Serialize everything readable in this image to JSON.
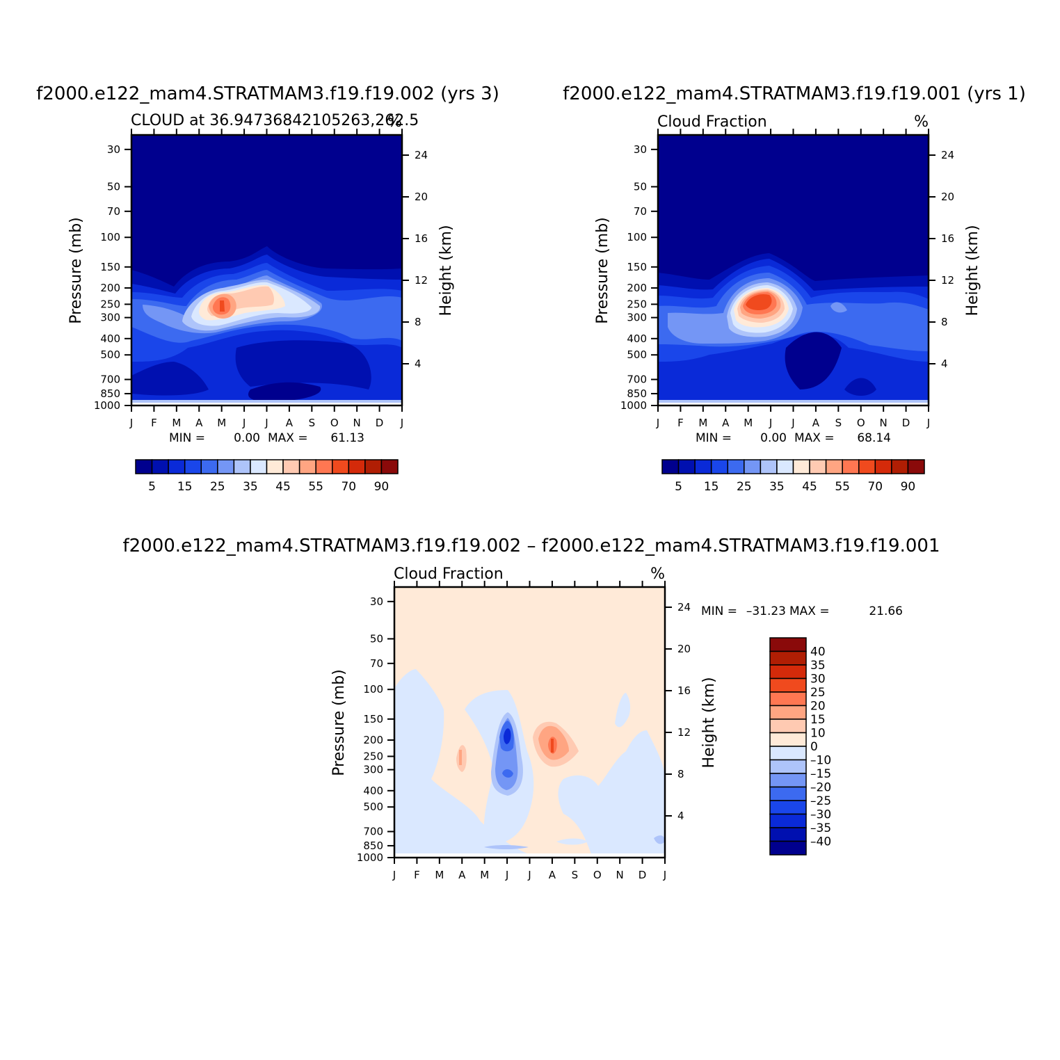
{
  "chart_data": [
    {
      "type": "heatmap",
      "title": "f2000.e122_mam4.STRATMAM3.f19.f19.002 (yrs 3)",
      "left_string": "CLOUD at 36.94736842105263,262.5",
      "right_string": "%",
      "ylabel": "Pressure (mb)",
      "ylabel_right": "Height (km)",
      "x_ticks": [
        "J",
        "F",
        "M",
        "A",
        "M",
        "J",
        "J",
        "A",
        "S",
        "O",
        "N",
        "D",
        "J"
      ],
      "y_ticks": [
        30,
        50,
        70,
        100,
        150,
        200,
        250,
        300,
        400,
        500,
        700,
        850,
        1000
      ],
      "y_log_scale": true,
      "y_right_ticks": [
        24,
        20,
        16,
        12,
        8,
        4
      ],
      "min_label": "MIN =",
      "min_value": "0.00",
      "max_label": "MAX =",
      "max_value": "61.13",
      "colorbar": {
        "orientation": "horizontal",
        "levels": [
          5,
          10,
          15,
          20,
          25,
          30,
          35,
          40,
          45,
          50,
          55,
          60,
          70,
          80,
          90
        ],
        "labels": [
          "5",
          "15",
          "25",
          "35",
          "45",
          "55",
          "70",
          "90"
        ],
        "colors": [
          "#00008e",
          "#0010b0",
          "#0a2ad8",
          "#1a46ea",
          "#3c6af0",
          "#7496f5",
          "#aec4fa",
          "#dae8ff",
          "#ffead8",
          "#ffcab2",
          "#ffa582",
          "#ff7752",
          "#f04a1e",
          "#d42a0a",
          "#b01e04",
          "#8a0a0a"
        ]
      },
      "features": [
        {
          "x": 4.0,
          "p": 250,
          "value": 61.13
        },
        {
          "x": 6.0,
          "p": 200,
          "value": 45
        }
      ]
    },
    {
      "type": "heatmap",
      "title": "f2000.e122_mam4.STRATMAM3.f19.f19.001 (yrs 1)",
      "left_string": "Cloud Fraction",
      "right_string": "%",
      "ylabel": "Pressure (mb)",
      "ylabel_right": "Height (km)",
      "x_ticks": [
        "J",
        "F",
        "M",
        "A",
        "M",
        "J",
        "J",
        "A",
        "S",
        "O",
        "N",
        "D",
        "J"
      ],
      "y_ticks": [
        30,
        50,
        70,
        100,
        150,
        200,
        250,
        300,
        400,
        500,
        700,
        850,
        1000
      ],
      "y_log_scale": true,
      "y_right_ticks": [
        24,
        20,
        16,
        12,
        8,
        4
      ],
      "min_label": "MIN =",
      "min_value": "0.00",
      "max_label": "MAX =",
      "max_value": "68.14",
      "colorbar": {
        "orientation": "horizontal",
        "levels": [
          5,
          10,
          15,
          20,
          25,
          30,
          35,
          40,
          45,
          50,
          55,
          60,
          70,
          80,
          90
        ],
        "labels": [
          "5",
          "15",
          "25",
          "35",
          "45",
          "55",
          "70",
          "90"
        ],
        "colors": [
          "#00008e",
          "#0010b0",
          "#0a2ad8",
          "#1a46ea",
          "#3c6af0",
          "#7496f5",
          "#aec4fa",
          "#dae8ff",
          "#ffead8",
          "#ffcab2",
          "#ffa582",
          "#ff7752",
          "#f04a1e",
          "#d42a0a",
          "#b01e04",
          "#8a0a0a"
        ]
      },
      "features": [
        {
          "x": 4.7,
          "p": 240,
          "value": 68.14
        }
      ]
    },
    {
      "type": "heatmap",
      "title": "f2000.e122_mam4.STRATMAM3.f19.f19.002 – f2000.e122_mam4.STRATMAM3.f19.f19.001",
      "left_string": "Cloud Fraction",
      "right_string": "%",
      "ylabel": "Pressure (mb)",
      "ylabel_right": "Height (km)",
      "x_ticks": [
        "J",
        "F",
        "M",
        "A",
        "M",
        "J",
        "J",
        "A",
        "S",
        "O",
        "N",
        "D",
        "J"
      ],
      "y_ticks": [
        30,
        50,
        70,
        100,
        150,
        200,
        250,
        300,
        400,
        500,
        700,
        850,
        1000
      ],
      "y_log_scale": true,
      "y_right_ticks": [
        24,
        20,
        16,
        12,
        8,
        4
      ],
      "min_label": "MIN =",
      "min_value": "–31.23",
      "max_label": "MAX =",
      "max_value": "21.66",
      "colorbar": {
        "orientation": "vertical",
        "levels": [
          -40,
          -35,
          -30,
          -25,
          -20,
          -15,
          -10,
          0,
          10,
          15,
          20,
          25,
          30,
          35,
          40
        ],
        "labels": [
          "40",
          "35",
          "30",
          "25",
          "20",
          "15",
          "10",
          "0",
          "–10",
          "–15",
          "–20",
          "–25",
          "–30",
          "–35",
          "–40"
        ],
        "colors": [
          "#00008e",
          "#0010b0",
          "#0a2ad8",
          "#1a46ea",
          "#3c6af0",
          "#7496f5",
          "#aec4fa",
          "#dae8ff",
          "#ffead8",
          "#ffcab2",
          "#ffa582",
          "#ff7752",
          "#f04a1e",
          "#d42a0a",
          "#b01e04",
          "#8a0a0a"
        ]
      },
      "features": [
        {
          "x": 5.0,
          "p": 190,
          "value": -31.23
        },
        {
          "x": 7.0,
          "p": 220,
          "value": 21.66
        },
        {
          "x": 3.0,
          "p": 260,
          "value": 15
        }
      ]
    }
  ]
}
